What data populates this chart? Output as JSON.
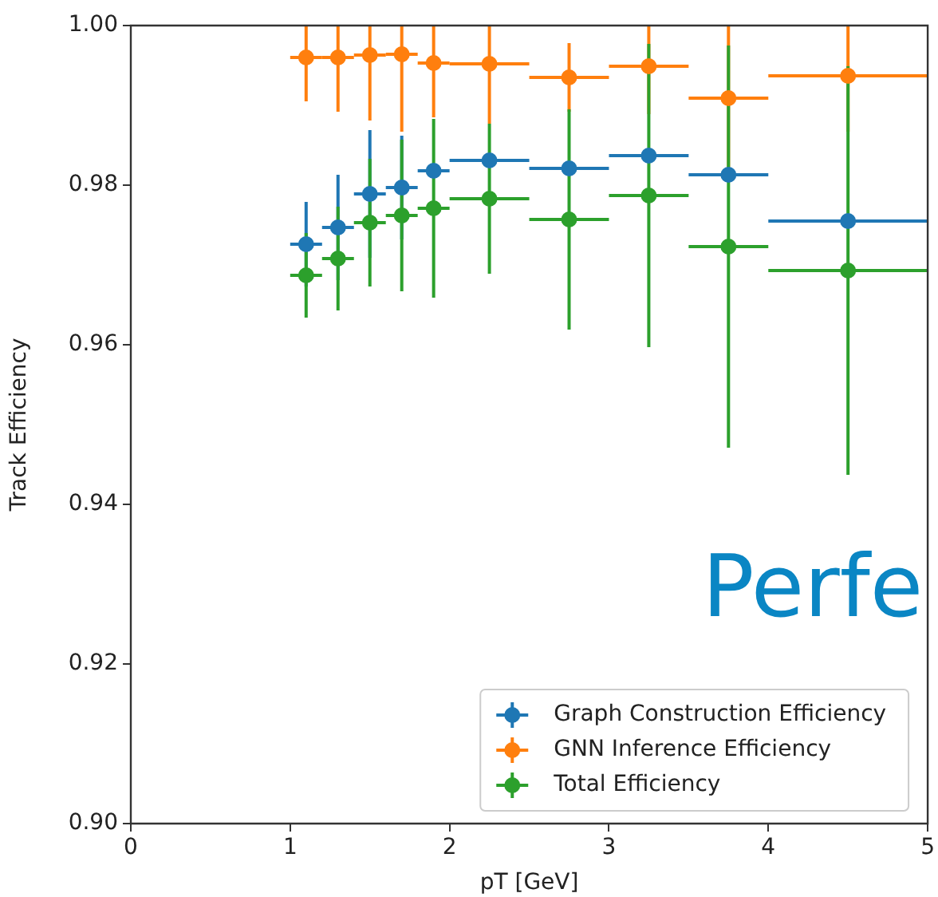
{
  "chart_data": {
    "type": "scatter",
    "xlabel": "pT [GeV]",
    "ylabel": "Track Efficiency",
    "xlim": [
      0,
      5
    ],
    "xticks": [
      0,
      1,
      2,
      3,
      4,
      5
    ],
    "ylim": [
      0.9,
      1.0
    ],
    "yticks": [
      {
        "value": 0.9,
        "label": "0.90"
      },
      {
        "value": 0.92,
        "label": "0.92"
      },
      {
        "value": 0.94,
        "label": "0.94"
      },
      {
        "value": 0.96,
        "label": "0.96"
      },
      {
        "value": 0.98,
        "label": "0.98"
      },
      {
        "value": 1.0,
        "label": "1.00"
      }
    ],
    "grid": false,
    "legend": "bottom right",
    "marker": "circle",
    "x": [
      1.1,
      1.3,
      1.5,
      1.7,
      1.9,
      2.25,
      2.75,
      3.25,
      3.75,
      4.5
    ],
    "series": [
      {
        "name": "Graph Construction Efficiency",
        "color": "#1f77b4",
        "values": [
          0.9726,
          0.9747,
          0.9789,
          0.9797,
          0.9818,
          0.9831,
          0.9821,
          0.9837,
          0.9813,
          0.9755
        ],
        "errors": [
          0.0053,
          0.0066,
          0.008,
          0.0065,
          null,
          null,
          null,
          null,
          null,
          null
        ],
        "xerrors": [
          0.1,
          0.1,
          0.1,
          0.1,
          0.1,
          0.25,
          0.25,
          0.25,
          0.25,
          0.5
        ]
      },
      {
        "name": "GNN Inference Efficiency",
        "color": "#ff7f0e",
        "values": [
          0.996,
          0.996,
          0.9963,
          0.9964,
          0.9953,
          0.9952,
          0.9935,
          0.9949,
          0.9909,
          0.9937
        ],
        "errors": [
          [
            0.9905,
            1.0
          ],
          [
            0.9892,
            1.0
          ],
          [
            0.9881,
            1.0
          ],
          [
            0.9867,
            1.0
          ],
          [
            0.9885,
            1.0
          ],
          [
            0.9877,
            1.0
          ],
          [
            0.9892,
            0.9978
          ],
          [
            0.9889,
            1.0
          ],
          [
            0.9809,
            1.0
          ],
          [
            0.9867,
            1.0
          ]
        ],
        "xerrors": [
          0.1,
          0.1,
          0.1,
          0.1,
          0.1,
          0.25,
          0.25,
          0.25,
          0.25,
          0.5
        ]
      },
      {
        "name": "Total Efficiency",
        "color": "#2ca02c",
        "values": [
          0.9687,
          0.9708,
          0.9753,
          0.9762,
          0.9771,
          0.9783,
          0.9757,
          0.9787,
          0.9723,
          0.9693
        ],
        "errors": [
          0.0053,
          0.0065,
          0.008,
          0.0095,
          0.0112,
          0.0094,
          0.0138,
          0.019,
          0.0252,
          0.0256
        ],
        "xerrors": [
          0.1,
          0.1,
          0.1,
          0.1,
          0.1,
          0.25,
          0.25,
          0.25,
          0.25,
          0.5
        ]
      }
    ],
    "annotations": [
      "Perfe"
    ]
  }
}
